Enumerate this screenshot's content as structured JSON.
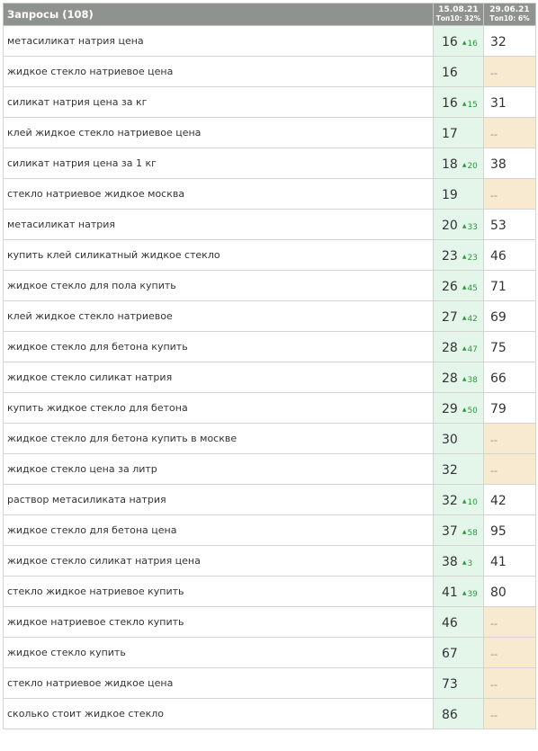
{
  "header": {
    "title": "Запросы (108)",
    "col1_date": "15.08.21",
    "col1_top": "Топ10: 32%",
    "col2_date": "29.06.21",
    "col2_top": "Топ10: 6%"
  },
  "arrow_glyph": "▲",
  "rows": [
    {
      "query": "метасиликат натрия цена",
      "pos1": "16",
      "delta": "16",
      "pos2": "32"
    },
    {
      "query": "жидкое стекло натриевое цена",
      "pos1": "16",
      "delta": "",
      "pos2": "--"
    },
    {
      "query": "силикат натрия цена за кг",
      "pos1": "16",
      "delta": "15",
      "pos2": "31"
    },
    {
      "query": "клей жидкое стекло натриевое цена",
      "pos1": "17",
      "delta": "",
      "pos2": "--"
    },
    {
      "query": "силикат натрия цена за 1 кг",
      "pos1": "18",
      "delta": "20",
      "pos2": "38"
    },
    {
      "query": "стекло натриевое жидкое москва",
      "pos1": "19",
      "delta": "",
      "pos2": "--"
    },
    {
      "query": "метасиликат натрия",
      "pos1": "20",
      "delta": "33",
      "pos2": "53"
    },
    {
      "query": "купить клей силикатный жидкое стекло",
      "pos1": "23",
      "delta": "23",
      "pos2": "46"
    },
    {
      "query": "жидкое стекло для пола купить",
      "pos1": "26",
      "delta": "45",
      "pos2": "71"
    },
    {
      "query": "клей жидкое стекло натриевое",
      "pos1": "27",
      "delta": "42",
      "pos2": "69"
    },
    {
      "query": "жидкое стекло для бетона купить",
      "pos1": "28",
      "delta": "47",
      "pos2": "75"
    },
    {
      "query": "жидкое стекло силикат натрия",
      "pos1": "28",
      "delta": "38",
      "pos2": "66"
    },
    {
      "query": "купить жидкое стекло для бетона",
      "pos1": "29",
      "delta": "50",
      "pos2": "79"
    },
    {
      "query": "жидкое стекло для бетона купить в москве",
      "pos1": "30",
      "delta": "",
      "pos2": "--"
    },
    {
      "query": "жидкое стекло цена за литр",
      "pos1": "32",
      "delta": "",
      "pos2": "--"
    },
    {
      "query": "раствор метасиликата натрия",
      "pos1": "32",
      "delta": "10",
      "pos2": "42"
    },
    {
      "query": "жидкое стекло для бетона цена",
      "pos1": "37",
      "delta": "58",
      "pos2": "95"
    },
    {
      "query": "жидкое стекло силикат натрия цена",
      "pos1": "38",
      "delta": "3",
      "pos2": "41"
    },
    {
      "query": "стекло жидкое натриевое купить",
      "pos1": "41",
      "delta": "39",
      "pos2": "80"
    },
    {
      "query": "жидкое натриевое стекло купить",
      "pos1": "46",
      "delta": "",
      "pos2": "--"
    },
    {
      "query": "жидкое стекло купить",
      "pos1": "67",
      "delta": "",
      "pos2": "--"
    },
    {
      "query": "стекло натриевое жидкое цена",
      "pos1": "73",
      "delta": "",
      "pos2": "--"
    },
    {
      "query": "сколько стоит жидкое стекло",
      "pos1": "86",
      "delta": "",
      "pos2": "--"
    }
  ]
}
